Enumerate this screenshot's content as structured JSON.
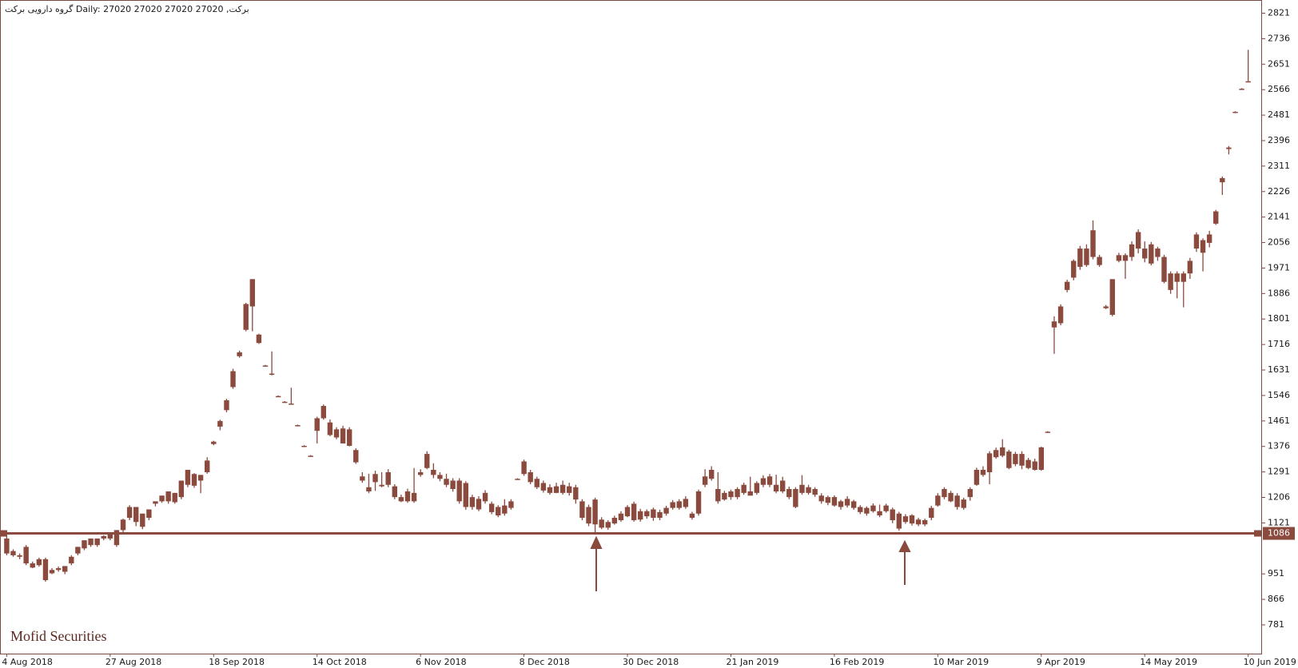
{
  "chart_data": {
    "type": "candlestick",
    "title": "برکت, Daily:  27020 27020 27020 27020  گروه دارویی برکت",
    "watermark": "Mofid Securities",
    "color": "#8b4a3e",
    "hline": 1086,
    "ylim": [
      685,
      2865
    ],
    "yticks": [
      781,
      866,
      951,
      1121,
      1206,
      1291,
      1376,
      1461,
      1546,
      1631,
      1716,
      1801,
      1886,
      1971,
      2056,
      2141,
      2226,
      2311,
      2396,
      2481,
      2566,
      2651,
      2736,
      2821
    ],
    "categories": [
      "4 Aug 2018",
      null,
      null,
      null,
      null,
      null,
      null,
      null,
      null,
      null,
      null,
      null,
      null,
      null,
      null,
      null,
      "27 Aug 2018",
      null,
      null,
      null,
      null,
      null,
      null,
      null,
      null,
      null,
      null,
      null,
      null,
      null,
      null,
      null,
      "18 Sep 2018",
      null,
      null,
      null,
      null,
      null,
      null,
      null,
      null,
      null,
      null,
      null,
      null,
      null,
      null,
      null,
      "14 Oct 2018",
      null,
      null,
      null,
      null,
      null,
      null,
      null,
      null,
      null,
      null,
      null,
      null,
      null,
      null,
      null,
      "6 Nov 2018",
      null,
      null,
      null,
      null,
      null,
      null,
      null,
      null,
      null,
      null,
      null,
      null,
      null,
      null,
      null,
      "8 Dec 2018",
      null,
      null,
      null,
      null,
      null,
      null,
      null,
      null,
      null,
      null,
      null,
      null,
      null,
      null,
      null,
      "30 Dec 2018",
      null,
      null,
      null,
      null,
      null,
      null,
      null,
      null,
      null,
      null,
      null,
      null,
      null,
      null,
      null,
      "21 Jan 2019",
      null,
      null,
      null,
      null,
      null,
      null,
      null,
      null,
      null,
      null,
      null,
      null,
      null,
      null,
      null,
      "16 Feb 2019",
      null,
      null,
      null,
      null,
      null,
      null,
      null,
      null,
      null,
      null,
      null,
      null,
      null,
      null,
      null,
      "10 Mar 2019",
      null,
      null,
      null,
      null,
      null,
      null,
      null,
      null,
      null,
      null,
      null,
      null,
      null,
      null,
      null,
      "9 Apr 2019",
      null,
      null,
      null,
      null,
      null,
      null,
      null,
      null,
      null,
      null,
      null,
      null,
      null,
      null,
      null,
      "14 May 2019",
      null,
      null,
      null,
      null,
      null,
      null,
      null,
      null,
      null,
      null,
      null,
      null,
      null,
      null,
      null,
      "10 Jun 2019"
    ],
    "ohlc": [
      [
        1069,
        1077,
        1013,
        1019
      ],
      [
        1027,
        1033,
        1008,
        1013
      ],
      [
        1013,
        1019,
        1000,
        1008
      ],
      [
        1041,
        1047,
        980,
        986
      ],
      [
        986,
        992,
        970,
        972
      ],
      [
        1000,
        1005,
        975,
        980
      ],
      [
        1000,
        1005,
        925,
        930
      ],
      [
        964,
        970,
        950,
        953
      ],
      [
        970,
        975,
        958,
        964
      ],
      [
        958,
        977,
        950,
        977
      ],
      [
        986,
        1013,
        980,
        1008
      ],
      [
        1019,
        1041,
        1013,
        1041
      ],
      [
        1036,
        1063,
        1030,
        1063
      ],
      [
        1047,
        1069,
        1041,
        1069
      ],
      [
        1047,
        1069,
        1041,
        1069
      ],
      [
        1069,
        1080,
        1063,
        1077
      ],
      [
        1069,
        1088,
        1063,
        1083
      ],
      [
        1047,
        1097,
        1041,
        1097
      ],
      [
        1097,
        1135,
        1090,
        1132
      ],
      [
        1138,
        1180,
        1130,
        1174
      ],
      [
        1124,
        1174,
        1110,
        1174
      ],
      [
        1108,
        1152,
        1100,
        1152
      ],
      [
        1138,
        1166,
        1130,
        1166
      ],
      [
        1185,
        1193,
        1176,
        1193
      ],
      [
        1193,
        1212,
        1188,
        1212
      ],
      [
        1193,
        1226,
        1185,
        1226
      ],
      [
        1190,
        1221,
        1185,
        1221
      ],
      [
        1207,
        1262,
        1200,
        1262
      ],
      [
        1248,
        1298,
        1240,
        1298
      ],
      [
        1245,
        1287,
        1238,
        1284
      ],
      [
        1262,
        1281,
        1220,
        1281
      ],
      [
        1290,
        1340,
        1285,
        1329
      ],
      [
        1384,
        1395,
        1380,
        1392
      ],
      [
        1442,
        1465,
        1430,
        1461
      ],
      [
        1497,
        1535,
        1490,
        1530
      ],
      [
        1574,
        1635,
        1568,
        1627
      ],
      [
        1677,
        1695,
        1672,
        1690
      ],
      [
        1765,
        1855,
        1760,
        1851
      ],
      [
        1934,
        1934,
        1760,
        1843
      ],
      [
        1749,
        1752,
        1718,
        1721
      ],
      [
        1646,
        1648,
        1643,
        1646
      ],
      [
        1619,
        1693,
        1613,
        1619
      ],
      [
        1544,
        1546,
        1542,
        1544
      ],
      [
        1525,
        1527,
        1522,
        1525
      ],
      [
        1519,
        1572,
        1516,
        1519
      ],
      [
        1447,
        1449,
        1445,
        1447
      ],
      [
        1378,
        1380,
        1376,
        1378
      ],
      [
        1345,
        1347,
        1343,
        1345
      ],
      [
        1470,
        1475,
        1386,
        1428
      ],
      [
        1511,
        1516,
        1465,
        1470
      ],
      [
        1456,
        1466,
        1410,
        1414
      ],
      [
        1433,
        1440,
        1400,
        1406
      ],
      [
        1436,
        1445,
        1386,
        1386
      ],
      [
        1433,
        1440,
        1376,
        1378
      ],
      [
        1364,
        1370,
        1318,
        1323
      ],
      [
        1276,
        1290,
        1255,
        1262
      ],
      [
        1240,
        1285,
        1220,
        1226
      ],
      [
        1284,
        1295,
        1228,
        1257
      ],
      [
        1248,
        1290,
        1240,
        1243
      ],
      [
        1290,
        1300,
        1240,
        1248
      ],
      [
        1243,
        1250,
        1200,
        1207
      ],
      [
        1207,
        1215,
        1190,
        1193
      ],
      [
        1226,
        1235,
        1188,
        1193
      ],
      [
        1221,
        1304,
        1188,
        1193
      ],
      [
        1290,
        1300,
        1275,
        1281
      ],
      [
        1351,
        1360,
        1300,
        1304
      ],
      [
        1298,
        1320,
        1270,
        1281
      ],
      [
        1281,
        1290,
        1260,
        1268
      ],
      [
        1268,
        1285,
        1240,
        1248
      ],
      [
        1262,
        1270,
        1225,
        1234
      ],
      [
        1262,
        1270,
        1185,
        1193
      ],
      [
        1254,
        1260,
        1165,
        1174
      ],
      [
        1207,
        1215,
        1165,
        1174
      ],
      [
        1201,
        1210,
        1160,
        1166
      ],
      [
        1221,
        1230,
        1185,
        1193
      ],
      [
        1185,
        1192,
        1150,
        1157
      ],
      [
        1174,
        1180,
        1140,
        1146
      ],
      [
        1179,
        1200,
        1145,
        1152
      ],
      [
        1193,
        1200,
        1165,
        1171
      ],
      [
        1268,
        1270,
        1266,
        1268
      ],
      [
        1326,
        1332,
        1278,
        1284
      ],
      [
        1290,
        1298,
        1250,
        1257
      ],
      [
        1268,
        1275,
        1234,
        1240
      ],
      [
        1254,
        1262,
        1222,
        1229
      ],
      [
        1240,
        1250,
        1215,
        1221
      ],
      [
        1243,
        1255,
        1220,
        1221
      ],
      [
        1248,
        1262,
        1215,
        1221
      ],
      [
        1243,
        1255,
        1212,
        1221
      ],
      [
        1240,
        1248,
        1185,
        1199
      ],
      [
        1193,
        1200,
        1130,
        1138
      ],
      [
        1174,
        1182,
        1110,
        1119
      ],
      [
        1199,
        1205,
        1085,
        1116
      ],
      [
        1132,
        1140,
        1100,
        1105
      ],
      [
        1124,
        1130,
        1098,
        1105
      ],
      [
        1138,
        1145,
        1115,
        1119
      ],
      [
        1152,
        1160,
        1125,
        1130
      ],
      [
        1174,
        1180,
        1140,
        1143
      ],
      [
        1185,
        1192,
        1125,
        1130
      ],
      [
        1160,
        1168,
        1125,
        1132
      ],
      [
        1160,
        1166,
        1135,
        1143
      ],
      [
        1166,
        1172,
        1128,
        1138
      ],
      [
        1157,
        1165,
        1130,
        1138
      ],
      [
        1171,
        1178,
        1145,
        1152
      ],
      [
        1190,
        1197,
        1165,
        1171
      ],
      [
        1193,
        1200,
        1165,
        1171
      ],
      [
        1201,
        1210,
        1168,
        1174
      ],
      [
        1152,
        1158,
        1132,
        1138
      ],
      [
        1226,
        1232,
        1145,
        1152
      ],
      [
        1276,
        1300,
        1240,
        1248
      ],
      [
        1298,
        1310,
        1262,
        1268
      ],
      [
        1234,
        1290,
        1185,
        1193
      ],
      [
        1221,
        1228,
        1195,
        1199
      ],
      [
        1226,
        1232,
        1198,
        1207
      ],
      [
        1234,
        1240,
        1200,
        1207
      ],
      [
        1248,
        1255,
        1215,
        1221
      ],
      [
        1226,
        1275,
        1212,
        1212
      ],
      [
        1254,
        1260,
        1215,
        1221
      ],
      [
        1270,
        1280,
        1240,
        1248
      ],
      [
        1276,
        1284,
        1240,
        1248
      ],
      [
        1248,
        1282,
        1220,
        1226
      ],
      [
        1262,
        1275,
        1220,
        1226
      ],
      [
        1234,
        1242,
        1200,
        1207
      ],
      [
        1234,
        1240,
        1170,
        1174
      ],
      [
        1248,
        1280,
        1215,
        1221
      ],
      [
        1240,
        1248,
        1215,
        1221
      ],
      [
        1234,
        1240,
        1208,
        1215
      ],
      [
        1212,
        1220,
        1185,
        1193
      ],
      [
        1207,
        1212,
        1180,
        1188
      ],
      [
        1207,
        1213,
        1175,
        1179
      ],
      [
        1193,
        1198,
        1165,
        1174
      ],
      [
        1201,
        1210,
        1172,
        1179
      ],
      [
        1193,
        1198,
        1165,
        1171
      ],
      [
        1174,
        1180,
        1150,
        1157
      ],
      [
        1171,
        1176,
        1145,
        1152
      ],
      [
        1179,
        1186,
        1155,
        1160
      ],
      [
        1160,
        1182,
        1140,
        1146
      ],
      [
        1179,
        1185,
        1155,
        1160
      ],
      [
        1166,
        1172,
        1120,
        1130
      ],
      [
        1152,
        1158,
        1095,
        1102
      ],
      [
        1143,
        1150,
        1118,
        1124
      ],
      [
        1146,
        1150,
        1112,
        1119
      ],
      [
        1132,
        1138,
        1110,
        1116
      ],
      [
        1130,
        1135,
        1110,
        1116
      ],
      [
        1171,
        1178,
        1130,
        1138
      ],
      [
        1212,
        1220,
        1175,
        1179
      ],
      [
        1234,
        1240,
        1200,
        1207
      ],
      [
        1221,
        1228,
        1190,
        1193
      ],
      [
        1212,
        1220,
        1165,
        1174
      ],
      [
        1199,
        1205,
        1165,
        1171
      ],
      [
        1234,
        1240,
        1195,
        1207
      ],
      [
        1298,
        1305,
        1245,
        1248
      ],
      [
        1298,
        1310,
        1275,
        1281
      ],
      [
        1353,
        1360,
        1250,
        1290
      ],
      [
        1364,
        1372,
        1335,
        1340
      ],
      [
        1373,
        1400,
        1340,
        1345
      ],
      [
        1359,
        1365,
        1300,
        1304
      ],
      [
        1351,
        1358,
        1310,
        1317
      ],
      [
        1351,
        1360,
        1300,
        1312
      ],
      [
        1331,
        1338,
        1300,
        1304
      ],
      [
        1326,
        1335,
        1295,
        1298
      ],
      [
        1373,
        1375,
        1295,
        1298
      ],
      [
        1425,
        1427,
        1423,
        1425
      ],
      [
        1793,
        1810,
        1685,
        1773
      ],
      [
        1843,
        1850,
        1780,
        1787
      ],
      [
        1925,
        1932,
        1890,
        1898
      ],
      [
        1995,
        2000,
        1930,
        1939
      ],
      [
        2036,
        2045,
        1965,
        1975
      ],
      [
        2036,
        2050,
        1975,
        1981
      ],
      [
        2097,
        2130,
        2000,
        2008
      ],
      [
        2008,
        2015,
        1975,
        1981
      ],
      [
        1843,
        1848,
        1834,
        1837
      ],
      [
        1934,
        1934,
        1810,
        1815
      ],
      [
        2014,
        2022,
        1990,
        1995
      ],
      [
        2014,
        2020,
        1935,
        1995
      ],
      [
        2050,
        2060,
        1995,
        2008
      ],
      [
        2091,
        2100,
        2020,
        2036
      ],
      [
        2036,
        2060,
        1990,
        2003
      ],
      [
        2050,
        2058,
        1980,
        1986
      ],
      [
        2036,
        2042,
        1995,
        2008
      ],
      [
        2008,
        2015,
        1920,
        1925
      ],
      [
        1953,
        1960,
        1885,
        1898
      ],
      [
        1953,
        1960,
        1870,
        1925
      ],
      [
        1953,
        1960,
        1840,
        1925
      ],
      [
        1995,
        2005,
        1935,
        1953
      ],
      [
        2083,
        2090,
        2025,
        2036
      ],
      [
        2064,
        2070,
        1960,
        2022
      ],
      [
        2083,
        2095,
        2040,
        2055
      ],
      [
        2160,
        2165,
        2115,
        2119
      ],
      [
        2271,
        2276,
        2215,
        2257
      ],
      [
        2373,
        2378,
        2350,
        2368
      ],
      [
        2492,
        2494,
        2490,
        2492
      ],
      [
        2569,
        2571,
        2567,
        2569
      ],
      [
        2594,
        2699,
        2594,
        2594
      ]
    ]
  }
}
